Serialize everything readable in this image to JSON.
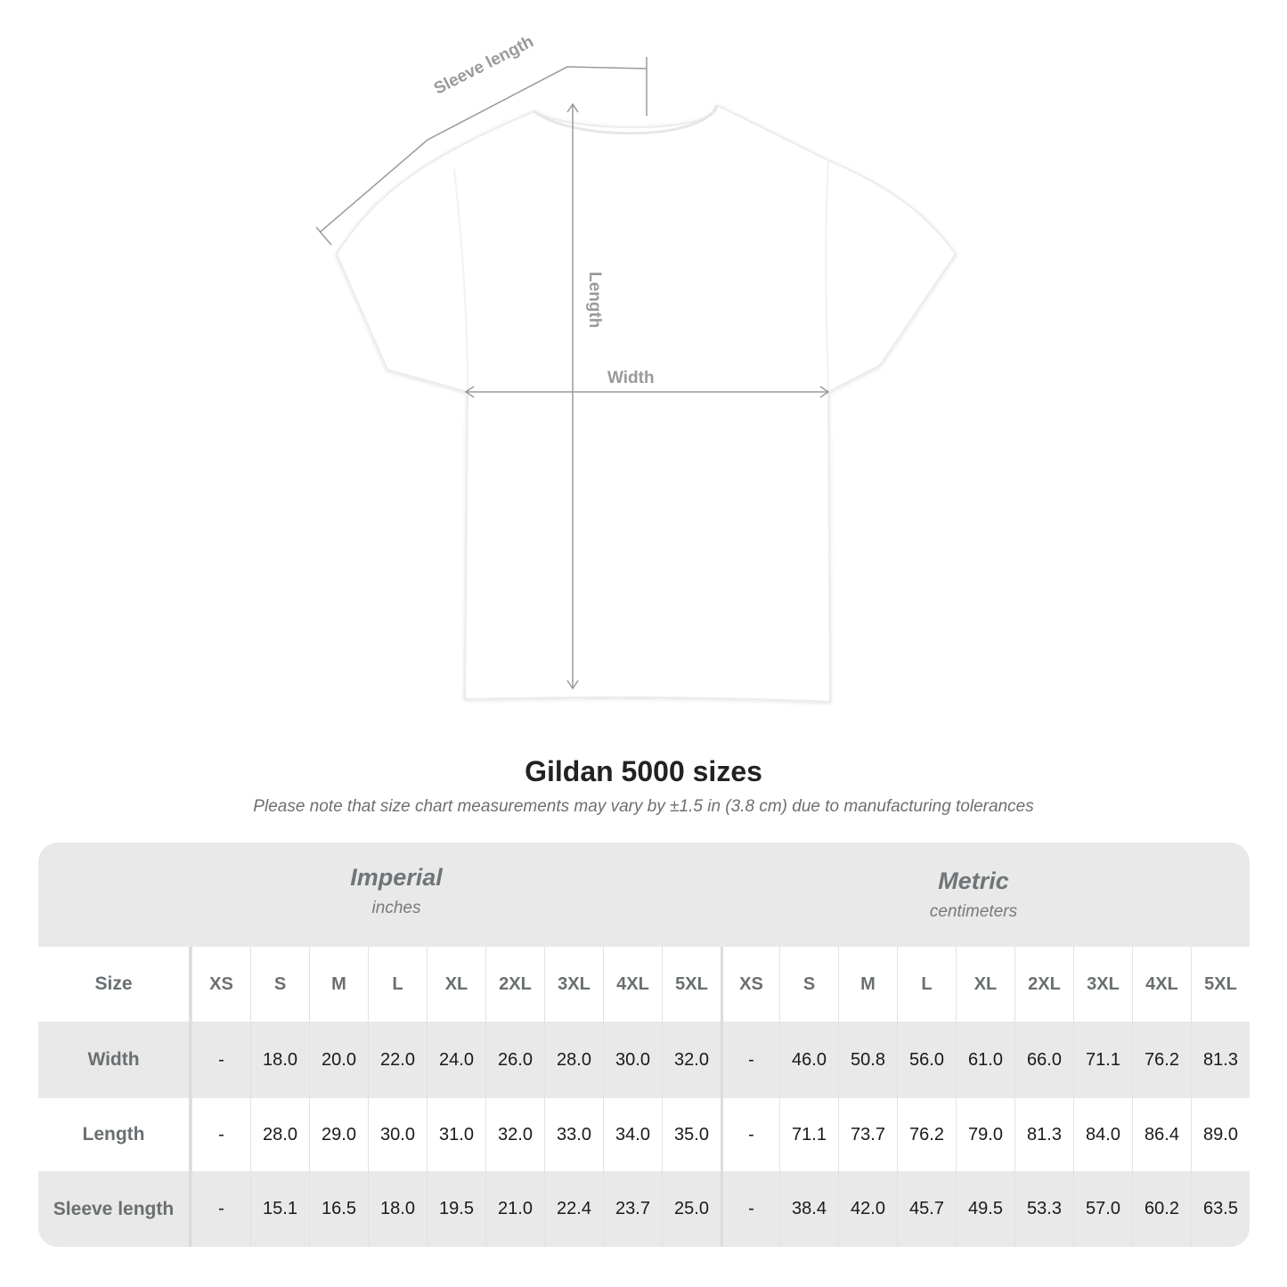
{
  "diagram": {
    "labels": {
      "sleeve_length": "Sleeve length",
      "length": "Length",
      "width": "Width"
    },
    "line_color": "#9a9a9a"
  },
  "title": "Gildan 5000 sizes",
  "subtitle": "Please note that size chart measurements may vary by ±1.5 in (3.8 cm) due to manufacturing tolerances",
  "table": {
    "imperial": {
      "title": "Imperial",
      "unit": "inches"
    },
    "metric": {
      "title": "Metric",
      "unit": "centimeters"
    },
    "size_label": "Size",
    "sizes": [
      "XS",
      "S",
      "M",
      "L",
      "XL",
      "2XL",
      "3XL",
      "4XL",
      "5XL"
    ],
    "rows": [
      {
        "label": "Width",
        "imperial": [
          "-",
          "18.0",
          "20.0",
          "22.0",
          "24.0",
          "26.0",
          "28.0",
          "30.0",
          "32.0"
        ],
        "metric": [
          "-",
          "46.0",
          "50.8",
          "56.0",
          "61.0",
          "66.0",
          "71.1",
          "76.2",
          "81.3"
        ]
      },
      {
        "label": "Length",
        "imperial": [
          "-",
          "28.0",
          "29.0",
          "30.0",
          "31.0",
          "32.0",
          "33.0",
          "34.0",
          "35.0"
        ],
        "metric": [
          "-",
          "71.1",
          "73.7",
          "76.2",
          "79.0",
          "81.3",
          "84.0",
          "86.4",
          "89.0"
        ]
      },
      {
        "label": "Sleeve length",
        "imperial": [
          "-",
          "15.1",
          "16.5",
          "18.0",
          "19.5",
          "21.0",
          "22.4",
          "23.7",
          "25.0"
        ],
        "metric": [
          "-",
          "38.4",
          "42.0",
          "45.7",
          "49.5",
          "53.3",
          "57.0",
          "60.2",
          "63.5"
        ]
      }
    ]
  }
}
